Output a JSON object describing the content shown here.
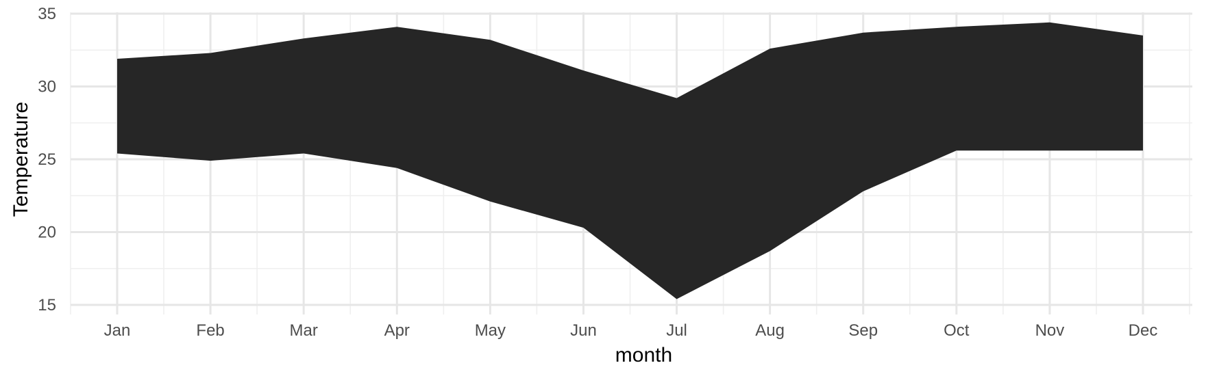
{
  "chart_data": {
    "type": "area",
    "subtype": "ribbon",
    "title": "",
    "xlabel": "month",
    "ylabel": "Temperature",
    "categories": [
      "Jan",
      "Feb",
      "Mar",
      "Apr",
      "May",
      "Jun",
      "Jul",
      "Aug",
      "Sep",
      "Oct",
      "Nov",
      "Dec"
    ],
    "series": [
      {
        "role": "upper",
        "values": [
          31.9,
          32.3,
          33.3,
          34.1,
          33.2,
          31.1,
          29.2,
          32.6,
          33.7,
          34.1,
          34.4,
          33.5
        ]
      },
      {
        "role": "lower",
        "values": [
          25.4,
          24.9,
          25.4,
          24.4,
          22.1,
          20.3,
          15.4,
          18.7,
          22.8,
          25.6,
          25.6,
          25.6
        ]
      }
    ],
    "ylim": [
      15,
      35
    ],
    "yticks": [
      15,
      20,
      25,
      30,
      35
    ],
    "grid": true,
    "legend": "none",
    "fill_color": "#262626",
    "grid_color": "#e6e6e6",
    "tick_label_color": "#4d4d4d"
  }
}
